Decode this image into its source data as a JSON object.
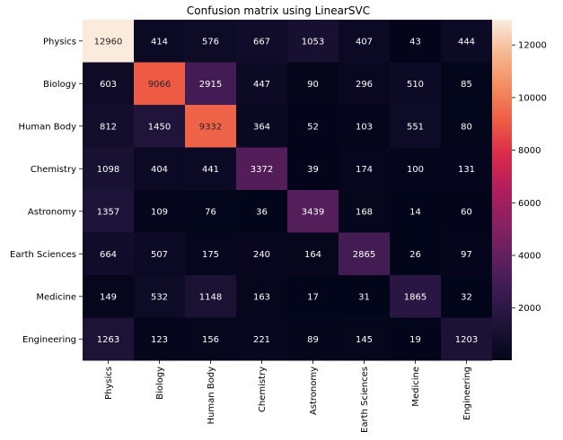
{
  "chart_data": {
    "type": "heatmap",
    "title": "Confusion matrix using LinearSVC",
    "row_labels": [
      "Physics",
      "Biology",
      "Human Body",
      "Chemistry",
      "Astronomy",
      "Earth Sciences",
      "Medicine",
      "Engineering"
    ],
    "col_labels": [
      "Physics",
      "Biology",
      "Human Body",
      "Chemistry",
      "Astronomy",
      "Earth Sciences",
      "Medicine",
      "Engineering"
    ],
    "matrix": [
      [
        12960,
        414,
        576,
        667,
        1053,
        407,
        43,
        444
      ],
      [
        603,
        9066,
        2915,
        447,
        90,
        296,
        510,
        85
      ],
      [
        812,
        1450,
        9332,
        364,
        52,
        103,
        551,
        80
      ],
      [
        1098,
        404,
        441,
        3372,
        39,
        174,
        100,
        131
      ],
      [
        1357,
        109,
        76,
        36,
        3439,
        168,
        14,
        60
      ],
      [
        664,
        507,
        175,
        240,
        164,
        2865,
        26,
        97
      ],
      [
        149,
        532,
        1148,
        163,
        17,
        31,
        1865,
        32
      ],
      [
        1263,
        123,
        156,
        221,
        89,
        145,
        19,
        1203
      ]
    ],
    "colorbar": {
      "vmin": 14,
      "vmax": 12960,
      "ticks": [
        "2000",
        "4000",
        "6000",
        "8000",
        "10000",
        "12000"
      ],
      "colormap": "rocket",
      "placement": "right"
    },
    "grid": false
  }
}
